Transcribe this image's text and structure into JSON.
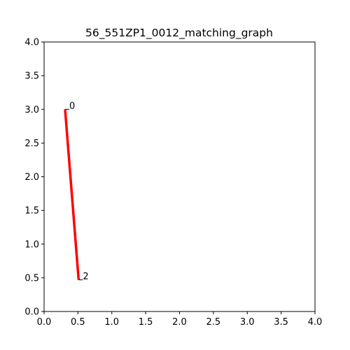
{
  "chart_data": {
    "type": "line",
    "title": "56_551ZP1_0012_matching_graph",
    "xlabel": "",
    "ylabel": "",
    "xlim": [
      0,
      4
    ],
    "ylim": [
      0,
      4
    ],
    "xticks": [
      "0.0",
      "0.5",
      "1.0",
      "1.5",
      "2.0",
      "2.5",
      "3.0",
      "3.5",
      "4.0"
    ],
    "yticks": [
      "0.0",
      "0.5",
      "1.0",
      "1.5",
      "2.0",
      "2.5",
      "3.0",
      "3.5",
      "4.0"
    ],
    "grid": false,
    "nodes": [
      {
        "label": "0",
        "x": 0.31,
        "y": 3.0
      },
      {
        "label": "2",
        "x": 0.51,
        "y": 0.47
      }
    ],
    "edges": [
      {
        "from": 0,
        "to": 1,
        "color": "#ff0000"
      }
    ]
  }
}
